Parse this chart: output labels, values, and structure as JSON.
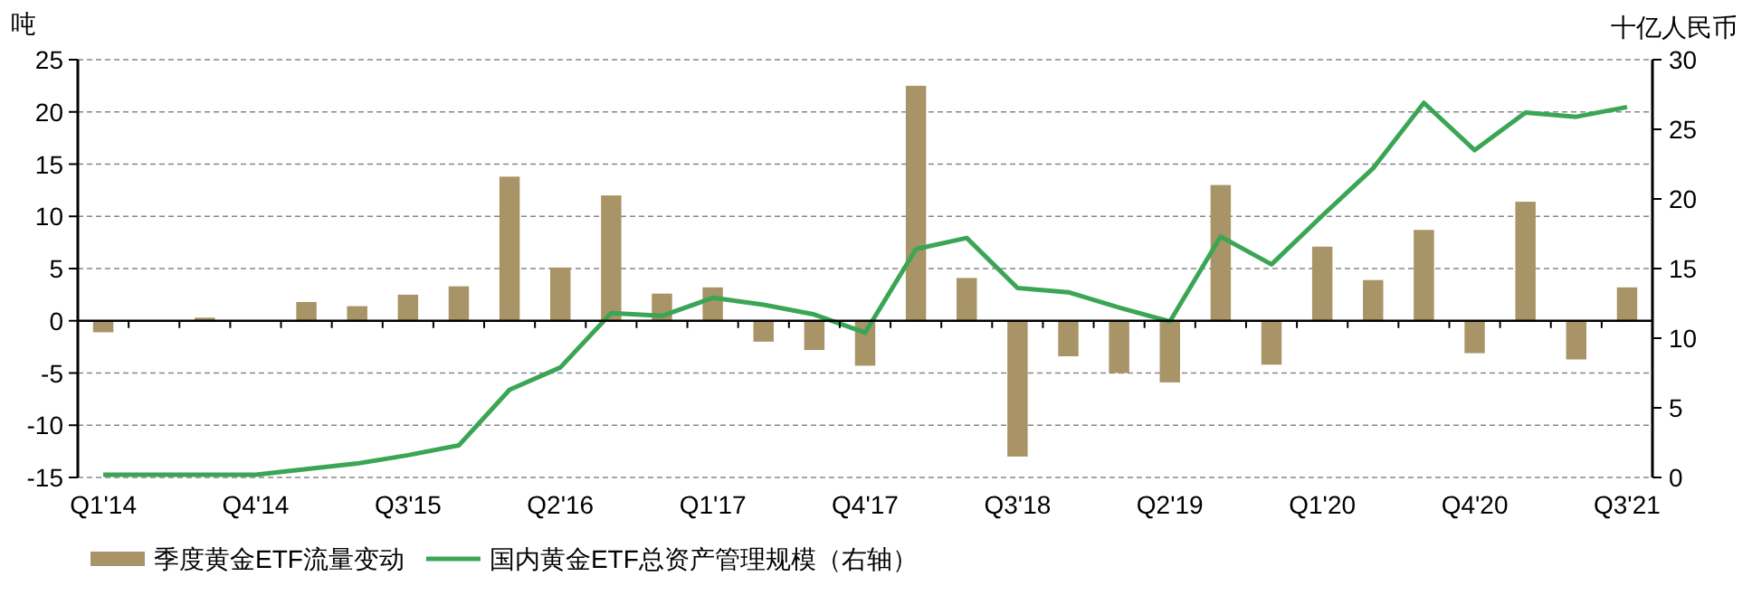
{
  "chart_data": {
    "type": "bar",
    "ylabel": "吨",
    "y2label": "十亿人民币",
    "categories": [
      "Q1'14",
      null,
      null,
      "Q4'14",
      null,
      null,
      "Q3'15",
      null,
      null,
      "Q2'16",
      null,
      null,
      "Q1'17",
      null,
      null,
      "Q4'17",
      null,
      null,
      "Q3'18",
      null,
      null,
      "Q2'19",
      null,
      null,
      "Q1'20",
      null,
      null,
      "Q4'20",
      null,
      null,
      "Q3'21"
    ],
    "series": [
      {
        "name": "季度黄金ETF流量变动",
        "color": "#a89466",
        "values": [
          -1.1,
          0,
          0.3,
          0,
          1.8,
          1.4,
          2.5,
          3.3,
          13.8,
          5.1,
          12,
          2.6,
          3.2,
          -2,
          -2.8,
          -4.3,
          22.5,
          4.1,
          -13,
          -3.4,
          -5,
          -5.9,
          13,
          -4.2,
          7.1,
          3.9,
          8.7,
          -3.1,
          11.4,
          -3.7,
          3.2
        ]
      },
      {
        "name": "国内黄金ETF总资产管理规模（右轴）",
        "type": "line",
        "axis": "y2",
        "color": "#3aa655",
        "values": [
          0.2,
          0.2,
          0.2,
          0.2,
          0.6,
          1.0,
          1.6,
          2.3,
          6.3,
          7.9,
          11.8,
          11.6,
          12.9,
          12.4,
          11.7,
          10.4,
          16.4,
          17.2,
          13.6,
          13.3,
          12.2,
          11.2,
          17.3,
          15.3,
          18.8,
          22.2,
          26.9,
          23.5,
          26.2,
          25.9,
          26.6
        ]
      }
    ],
    "ylim": [
      -15,
      25
    ],
    "yticks": [
      -15,
      -10,
      -5,
      0,
      5,
      10,
      15,
      20,
      25
    ],
    "y2lim": [
      0,
      30
    ],
    "y2ticks": [
      0,
      5,
      10,
      15,
      20,
      25,
      30
    ],
    "grid": "y",
    "legend": "bottom"
  }
}
